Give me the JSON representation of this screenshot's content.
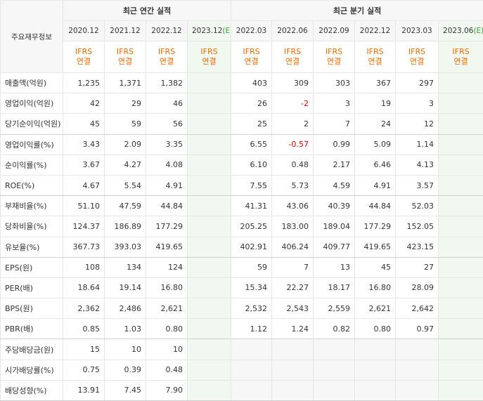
{
  "header": {
    "label_col": "주요재무정보",
    "annual_title": "최근 연간 실적",
    "quarter_title": "최근 분기 실적",
    "ifrs_line1": "IFRS",
    "ifrs_line2": "연결"
  },
  "columns": [
    {
      "date": "2020.12",
      "est": false
    },
    {
      "date": "2021.12",
      "est": false
    },
    {
      "date": "2022.12",
      "est": false
    },
    {
      "date": "2023.12",
      "est": true,
      "est_mark": "(E)"
    },
    {
      "date": "2022.03",
      "est": false
    },
    {
      "date": "2022.06",
      "est": false
    },
    {
      "date": "2022.09",
      "est": false
    },
    {
      "date": "2022.12",
      "est": false
    },
    {
      "date": "2023.03",
      "est": false
    },
    {
      "date": "2023.06",
      "est": true,
      "est_mark": "(E)"
    }
  ],
  "rows": [
    {
      "label": "매출액(억원)",
      "values": [
        "1,235",
        "1,371",
        "1,382",
        "",
        "403",
        "309",
        "303",
        "367",
        "297",
        ""
      ]
    },
    {
      "label": "영업이익(억원)",
      "values": [
        "42",
        "29",
        "46",
        "",
        "26",
        "-2",
        "3",
        "19",
        "3",
        ""
      ]
    },
    {
      "label": "당기순이익(억원)",
      "values": [
        "45",
        "59",
        "56",
        "",
        "25",
        "2",
        "7",
        "24",
        "12",
        ""
      ]
    },
    {
      "label": "영업이익률(%)",
      "values": [
        "3.43",
        "2.09",
        "3.35",
        "",
        "6.55",
        "-0.57",
        "0.99",
        "5.09",
        "1.14",
        ""
      ]
    },
    {
      "label": "순이익률(%)",
      "values": [
        "3.67",
        "4.27",
        "4.08",
        "",
        "6.10",
        "0.48",
        "2.17",
        "6.46",
        "4.13",
        ""
      ]
    },
    {
      "label": "ROE(%)",
      "values": [
        "4.67",
        "5.54",
        "4.91",
        "",
        "7.55",
        "5.73",
        "4.59",
        "4.91",
        "3.57",
        ""
      ]
    },
    {
      "label": "부채비율(%)",
      "values": [
        "51.10",
        "47.59",
        "44.84",
        "",
        "41.31",
        "43.06",
        "40.39",
        "44.84",
        "52.03",
        ""
      ]
    },
    {
      "label": "당좌비율(%)",
      "values": [
        "124.37",
        "186.89",
        "177.29",
        "",
        "205.25",
        "183.00",
        "189.04",
        "177.29",
        "152.05",
        ""
      ]
    },
    {
      "label": "유보율(%)",
      "values": [
        "367.73",
        "393.03",
        "419.65",
        "",
        "402.91",
        "406.24",
        "409.77",
        "419.65",
        "423.15",
        ""
      ]
    },
    {
      "label": "EPS(원)",
      "values": [
        "108",
        "134",
        "124",
        "",
        "59",
        "7",
        "13",
        "45",
        "27",
        ""
      ]
    },
    {
      "label": "PER(배)",
      "values": [
        "18.64",
        "19.14",
        "16.80",
        "",
        "15.34",
        "22.27",
        "18.17",
        "16.80",
        "28.09",
        ""
      ]
    },
    {
      "label": "BPS(원)",
      "values": [
        "2,362",
        "2,486",
        "2,621",
        "",
        "2,532",
        "2,543",
        "2,559",
        "2,621",
        "2,642",
        ""
      ]
    },
    {
      "label": "PBR(배)",
      "values": [
        "0.85",
        "1.03",
        "0.80",
        "",
        "1.12",
        "1.24",
        "0.82",
        "0.80",
        "0.97",
        ""
      ]
    },
    {
      "label": "주당배당금(원)",
      "values": [
        "15",
        "10",
        "10",
        "",
        "",
        "",
        "",
        "",
        "",
        ""
      ]
    },
    {
      "label": "시가배당률(%)",
      "values": [
        "0.75",
        "0.39",
        "0.48",
        "",
        "",
        "",
        "",
        "",
        "",
        ""
      ]
    },
    {
      "label": "배당성향(%)",
      "values": [
        "13.91",
        "7.45",
        "7.90",
        "",
        "",
        "",
        "",
        "",
        "",
        ""
      ]
    }
  ],
  "colors": {
    "ifrs": "#f06a00",
    "negative": "#e20000",
    "estimate_bg": "#f1f8ef",
    "header_bg": "#f7f7f7"
  }
}
